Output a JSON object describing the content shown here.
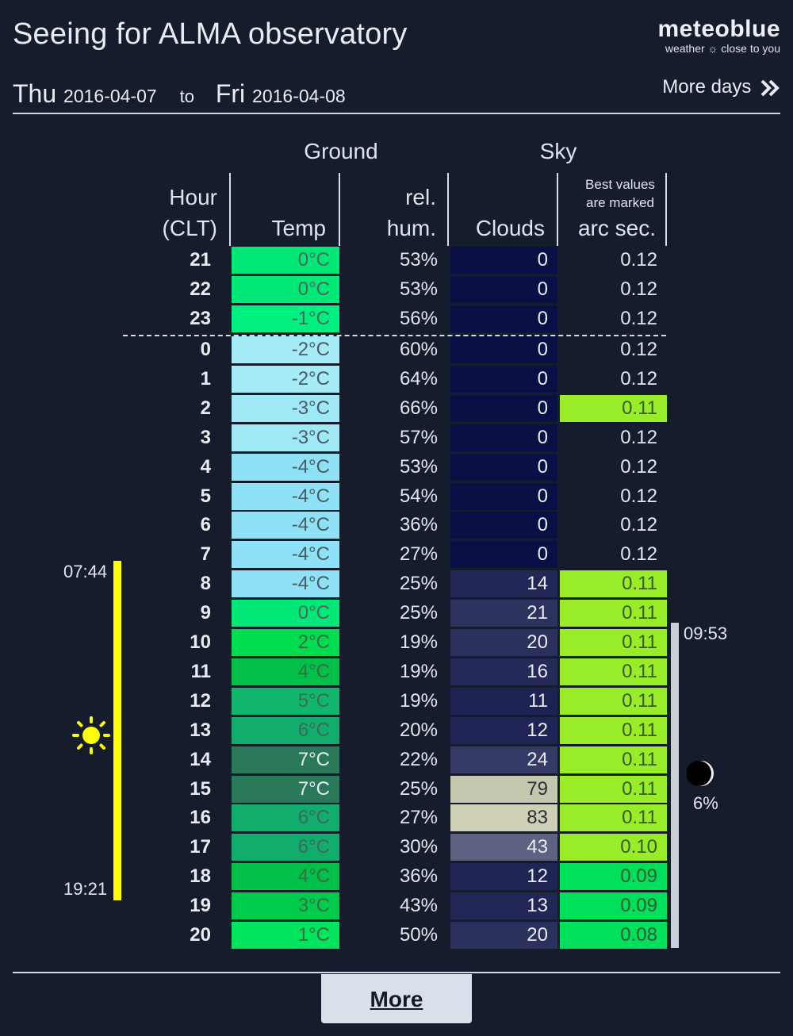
{
  "header": {
    "title": "Seeing for ALMA observatory",
    "logo_name": "meteoblue",
    "logo_tagline": "weather ☼ close to you"
  },
  "date_range": {
    "from_day": "Thu",
    "from_date": "2016-04-07",
    "to_label": "to",
    "to_day": "Fri",
    "to_date": "2016-04-08",
    "more_days_label": "More days"
  },
  "table": {
    "group_ground": "Ground",
    "group_sky": "Sky",
    "col_hour_1": "Hour",
    "col_hour_2": "(CLT)",
    "col_temp": "Temp",
    "col_hum_1": "rel.",
    "col_hum_2": "hum.",
    "col_clouds": "Clouds",
    "col_seeing_note_1": "Best values",
    "col_seeing_note_2": "are marked",
    "col_seeing": "arc sec.",
    "rows": [
      {
        "hour": "21",
        "temp": "0°C",
        "temp_bg": "#00e878",
        "temp_fg": "#4a6a5a",
        "hum": "53%",
        "clouds": "0",
        "cloud_bg": "#0a0f45",
        "cloud_fg": "#e8ecf2",
        "seeing": "0.12",
        "seeing_bg": "",
        "seeing_fg": "#e2e7ef"
      },
      {
        "hour": "22",
        "temp": "0°C",
        "temp_bg": "#00e878",
        "temp_fg": "#4a6a5a",
        "hum": "53%",
        "clouds": "0",
        "cloud_bg": "#0a0f45",
        "cloud_fg": "#e8ecf2",
        "seeing": "0.12",
        "seeing_bg": "",
        "seeing_fg": "#e2e7ef"
      },
      {
        "hour": "23",
        "temp": "-1°C",
        "temp_bg": "#00f080",
        "temp_fg": "#4a6a5a",
        "hum": "56%",
        "clouds": "0",
        "cloud_bg": "#0a0f45",
        "cloud_fg": "#e8ecf2",
        "seeing": "0.12",
        "seeing_bg": "",
        "seeing_fg": "#e2e7ef"
      },
      {
        "hour": "0",
        "temp": "-2°C",
        "temp_bg": "#a6ecf7",
        "temp_fg": "#4a5a66",
        "hum": "60%",
        "clouds": "0",
        "cloud_bg": "#0a0f45",
        "cloud_fg": "#e8ecf2",
        "seeing": "0.12",
        "seeing_bg": "",
        "seeing_fg": "#e2e7ef"
      },
      {
        "hour": "1",
        "temp": "-2°C",
        "temp_bg": "#a6ecf7",
        "temp_fg": "#4a5a66",
        "hum": "64%",
        "clouds": "0",
        "cloud_bg": "#0a0f45",
        "cloud_fg": "#e8ecf2",
        "seeing": "0.12",
        "seeing_bg": "",
        "seeing_fg": "#e2e7ef"
      },
      {
        "hour": "2",
        "temp": "-3°C",
        "temp_bg": "#9fe9f6",
        "temp_fg": "#4a5a66",
        "hum": "66%",
        "clouds": "0",
        "cloud_bg": "#0a0f45",
        "cloud_fg": "#e8ecf2",
        "seeing": "0.11",
        "seeing_bg": "#99ec28",
        "seeing_fg": "#3c5a1e"
      },
      {
        "hour": "3",
        "temp": "-3°C",
        "temp_bg": "#9fe9f6",
        "temp_fg": "#4a5a66",
        "hum": "57%",
        "clouds": "0",
        "cloud_bg": "#0a0f45",
        "cloud_fg": "#e8ecf2",
        "seeing": "0.12",
        "seeing_bg": "",
        "seeing_fg": "#e2e7ef"
      },
      {
        "hour": "4",
        "temp": "-4°C",
        "temp_bg": "#8fe1f5",
        "temp_fg": "#4a5a66",
        "hum": "53%",
        "clouds": "0",
        "cloud_bg": "#0a0f45",
        "cloud_fg": "#e8ecf2",
        "seeing": "0.12",
        "seeing_bg": "",
        "seeing_fg": "#e2e7ef"
      },
      {
        "hour": "5",
        "temp": "-4°C",
        "temp_bg": "#8fe1f5",
        "temp_fg": "#4a5a66",
        "hum": "54%",
        "clouds": "0",
        "cloud_bg": "#0a0f45",
        "cloud_fg": "#e8ecf2",
        "seeing": "0.12",
        "seeing_bg": "",
        "seeing_fg": "#e2e7ef"
      },
      {
        "hour": "6",
        "temp": "-4°C",
        "temp_bg": "#8fe1f5",
        "temp_fg": "#4a5a66",
        "hum": "36%",
        "clouds": "0",
        "cloud_bg": "#0a0f45",
        "cloud_fg": "#e8ecf2",
        "seeing": "0.12",
        "seeing_bg": "",
        "seeing_fg": "#e2e7ef"
      },
      {
        "hour": "7",
        "temp": "-4°C",
        "temp_bg": "#8fe1f5",
        "temp_fg": "#4a5a66",
        "hum": "27%",
        "clouds": "0",
        "cloud_bg": "#0a0f45",
        "cloud_fg": "#e8ecf2",
        "seeing": "0.12",
        "seeing_bg": "",
        "seeing_fg": "#e2e7ef"
      },
      {
        "hour": "8",
        "temp": "-4°C",
        "temp_bg": "#8fe1f5",
        "temp_fg": "#4a5a66",
        "hum": "25%",
        "clouds": "14",
        "cloud_bg": "#222756",
        "cloud_fg": "#e8ecf2",
        "seeing": "0.11",
        "seeing_bg": "#99ec28",
        "seeing_fg": "#3c5a1e"
      },
      {
        "hour": "9",
        "temp": "0°C",
        "temp_bg": "#00e878",
        "temp_fg": "#4a6a5a",
        "hum": "25%",
        "clouds": "21",
        "cloud_bg": "#2d325e",
        "cloud_fg": "#e8ecf2",
        "seeing": "0.11",
        "seeing_bg": "#99ec28",
        "seeing_fg": "#3c5a1e"
      },
      {
        "hour": "10",
        "temp": "2°C",
        "temp_bg": "#00dc50",
        "temp_fg": "#3e6a48",
        "hum": "19%",
        "clouds": "20",
        "cloud_bg": "#2b305d",
        "cloud_fg": "#e8ecf2",
        "seeing": "0.11",
        "seeing_bg": "#99ec28",
        "seeing_fg": "#3c5a1e"
      },
      {
        "hour": "11",
        "temp": "4°C",
        "temp_bg": "#00c04a",
        "temp_fg": "#3e6a48",
        "hum": "19%",
        "clouds": "16",
        "cloud_bg": "#252a58",
        "cloud_fg": "#e8ecf2",
        "seeing": "0.11",
        "seeing_bg": "#99ec28",
        "seeing_fg": "#3c5a1e"
      },
      {
        "hour": "12",
        "temp": "5°C",
        "temp_bg": "#10b66c",
        "temp_fg": "#3e6a58",
        "hum": "19%",
        "clouds": "11",
        "cloud_bg": "#1d2253",
        "cloud_fg": "#e8ecf2",
        "seeing": "0.11",
        "seeing_bg": "#99ec28",
        "seeing_fg": "#3c5a1e"
      },
      {
        "hour": "13",
        "temp": "6°C",
        "temp_bg": "#12ac6c",
        "temp_fg": "#3e6a58",
        "hum": "20%",
        "clouds": "12",
        "cloud_bg": "#1f2454",
        "cloud_fg": "#e8ecf2",
        "seeing": "0.11",
        "seeing_bg": "#99ec28",
        "seeing_fg": "#3c5a1e"
      },
      {
        "hour": "14",
        "temp": "7°C",
        "temp_bg": "#2a7a5a",
        "temp_fg": "#e8ecf2",
        "hum": "22%",
        "clouds": "24",
        "cloud_bg": "#353a66",
        "cloud_fg": "#e8ecf2",
        "seeing": "0.11",
        "seeing_bg": "#99ec28",
        "seeing_fg": "#3c5a1e"
      },
      {
        "hour": "15",
        "temp": "7°C",
        "temp_bg": "#2a7a5a",
        "temp_fg": "#e8ecf2",
        "hum": "25%",
        "clouds": "79",
        "cloud_bg": "#c5c6ae",
        "cloud_fg": "#2a2e36",
        "seeing": "0.11",
        "seeing_bg": "#99ec28",
        "seeing_fg": "#3c5a1e"
      },
      {
        "hour": "16",
        "temp": "6°C",
        "temp_bg": "#12ac6c",
        "temp_fg": "#3e6a58",
        "hum": "27%",
        "clouds": "83",
        "cloud_bg": "#cfcfb6",
        "cloud_fg": "#2a2e36",
        "seeing": "0.11",
        "seeing_bg": "#99ec28",
        "seeing_fg": "#3c5a1e"
      },
      {
        "hour": "17",
        "temp": "6°C",
        "temp_bg": "#12ac6c",
        "temp_fg": "#3e6a58",
        "hum": "30%",
        "clouds": "43",
        "cloud_bg": "#5f6280",
        "cloud_fg": "#e8ecf2",
        "seeing": "0.10",
        "seeing_bg": "#99ec28",
        "seeing_fg": "#3c5a1e"
      },
      {
        "hour": "18",
        "temp": "4°C",
        "temp_bg": "#00c04a",
        "temp_fg": "#3e6a48",
        "hum": "36%",
        "clouds": "12",
        "cloud_bg": "#1f2454",
        "cloud_fg": "#e8ecf2",
        "seeing": "0.09",
        "seeing_bg": "#00e05a",
        "seeing_fg": "#2e5a3a"
      },
      {
        "hour": "19",
        "temp": "3°C",
        "temp_bg": "#00cc4c",
        "temp_fg": "#3e6a48",
        "hum": "43%",
        "clouds": "13",
        "cloud_bg": "#212655",
        "cloud_fg": "#e8ecf2",
        "seeing": "0.09",
        "seeing_bg": "#00e05a",
        "seeing_fg": "#2e5a3a"
      },
      {
        "hour": "20",
        "temp": "1°C",
        "temp_bg": "#00e45e",
        "temp_fg": "#3e6a48",
        "hum": "50%",
        "clouds": "20",
        "cloud_bg": "#2b305d",
        "cloud_fg": "#e8ecf2",
        "seeing": "0.08",
        "seeing_bg": "#00e05a",
        "seeing_fg": "#2e5a3a"
      }
    ]
  },
  "sun": {
    "rise": "07:44",
    "set": "19:21",
    "icon": "sun-icon",
    "color": "#ffff00"
  },
  "moon": {
    "rise": "09:53",
    "illumination": "6%",
    "icon": "moon-icon",
    "color": "#c9ced8"
  },
  "footer": {
    "more_label": "More"
  }
}
